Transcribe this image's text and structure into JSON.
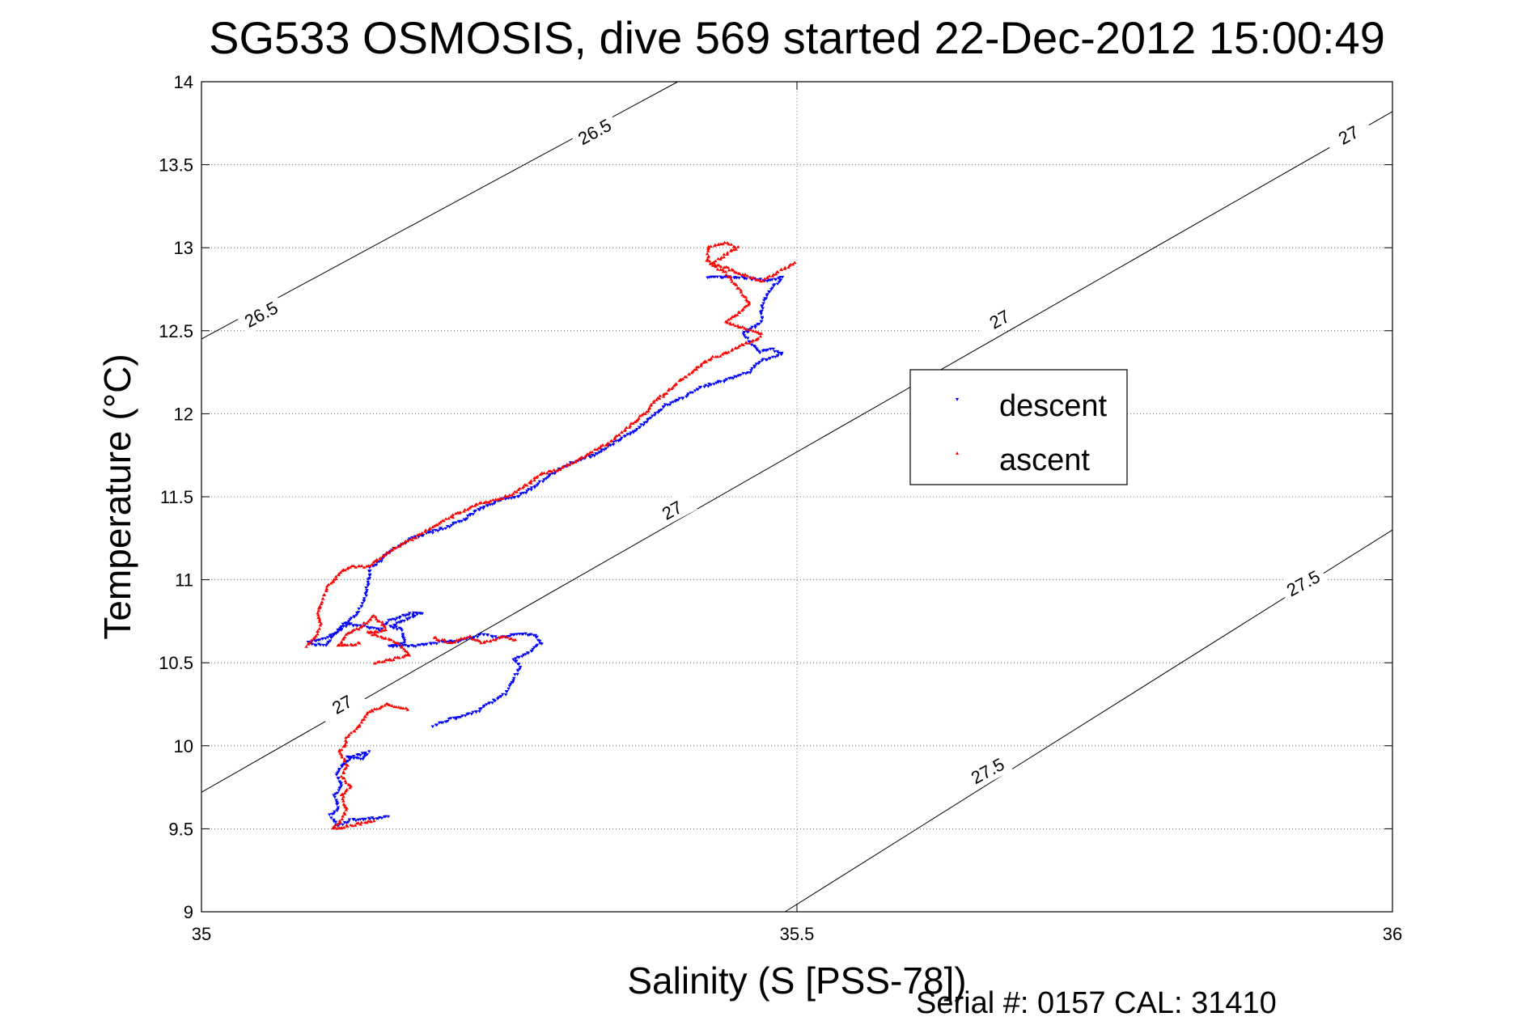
{
  "figure": {
    "footer": "Serial #: 0157  CAL: 31410"
  },
  "chart_data": {
    "type": "scatter",
    "title": "SG533 OSMOSIS, dive 569 started 22-Dec-2012 15:00:49",
    "xlabel": "Salinity (S [PSS-78])",
    "ylabel": "Temperature (°C)",
    "xlim": [
      35,
      36
    ],
    "ylim": [
      9,
      14
    ],
    "xticks": [
      "35",
      "35.5",
      "36"
    ],
    "yticks": [
      "9",
      "9.5",
      "10",
      "10.5",
      "11",
      "11.5",
      "12",
      "12.5",
      "13",
      "13.5",
      "14"
    ],
    "grid": true,
    "legend_position": "center-right",
    "density_contours": [
      {
        "level": "26.5",
        "x": [
          35.0,
          35.4
        ],
        "y": [
          12.45,
          14.0
        ]
      },
      {
        "level": "27",
        "x": [
          35.0,
          36.0
        ],
        "y": [
          9.72,
          13.82
        ]
      },
      {
        "level": "27",
        "x": [
          35.49,
          36.0
        ],
        "y": [
          9.0,
          11.3
        ]
      }
    ],
    "contour_labels": [
      {
        "text": "26.5",
        "x": 35.33,
        "y": 13.7
      },
      {
        "text": "26.5",
        "x": 35.05,
        "y": 12.6
      },
      {
        "text": "27",
        "x": 35.963,
        "y": 13.68
      },
      {
        "text": "27",
        "x": 35.67,
        "y": 12.57
      },
      {
        "text": "27",
        "x": 35.395,
        "y": 11.42
      },
      {
        "text": "27",
        "x": 35.118,
        "y": 10.25
      },
      {
        "text": "27.5",
        "x": 35.925,
        "y": 10.98
      },
      {
        "text": "27.5",
        "x": 35.66,
        "y": 9.85
      }
    ],
    "series": [
      {
        "name": "descent",
        "color": "#0000ff",
        "marker": "triangle-down",
        "anchors": [
          [
            35.157,
            9.57
          ],
          [
            35.125,
            9.55
          ],
          [
            35.115,
            9.52
          ],
          [
            35.108,
            9.58
          ],
          [
            35.115,
            9.62
          ],
          [
            35.112,
            9.7
          ],
          [
            35.118,
            9.76
          ],
          [
            35.113,
            9.82
          ],
          [
            35.118,
            9.88
          ],
          [
            35.125,
            9.93
          ],
          [
            35.14,
            9.96
          ],
          [
            35.135,
            9.92
          ],
          [
            35.12,
            9.94
          ],
          [
            35.195,
            10.12
          ],
          [
            35.21,
            10.16
          ],
          [
            35.23,
            10.2
          ],
          [
            35.245,
            10.27
          ],
          [
            35.255,
            10.31
          ],
          [
            35.262,
            10.4
          ],
          [
            35.268,
            10.48
          ],
          [
            35.262,
            10.52
          ],
          [
            35.275,
            10.56
          ],
          [
            35.285,
            10.62
          ],
          [
            35.28,
            10.67
          ],
          [
            35.265,
            10.67
          ],
          [
            35.248,
            10.65
          ],
          [
            35.236,
            10.67
          ],
          [
            35.215,
            10.63
          ],
          [
            35.195,
            10.62
          ],
          [
            35.18,
            10.6
          ],
          [
            35.158,
            10.6
          ],
          [
            35.17,
            10.62
          ],
          [
            35.168,
            10.7
          ],
          [
            35.158,
            10.72
          ],
          [
            35.172,
            10.76
          ],
          [
            35.185,
            10.8
          ],
          [
            35.172,
            10.79
          ],
          [
            35.158,
            10.75
          ],
          [
            35.15,
            10.7
          ],
          [
            35.135,
            10.72
          ],
          [
            35.12,
            10.74
          ],
          [
            35.104,
            10.6
          ],
          [
            35.09,
            10.62
          ],
          [
            35.112,
            10.67
          ],
          [
            35.122,
            10.73
          ],
          [
            35.132,
            10.81
          ],
          [
            35.138,
            10.9
          ],
          [
            35.14,
            11.0
          ],
          [
            35.142,
            11.07
          ],
          [
            35.148,
            11.1
          ],
          [
            35.155,
            11.15
          ],
          [
            35.165,
            11.2
          ],
          [
            35.18,
            11.26
          ],
          [
            35.2,
            11.3
          ],
          [
            35.22,
            11.36
          ],
          [
            35.232,
            11.42
          ],
          [
            35.25,
            11.48
          ],
          [
            35.265,
            11.5
          ],
          [
            35.278,
            11.55
          ],
          [
            35.29,
            11.62
          ],
          [
            35.31,
            11.7
          ],
          [
            35.33,
            11.75
          ],
          [
            35.345,
            11.82
          ],
          [
            35.355,
            11.86
          ],
          [
            35.365,
            11.9
          ],
          [
            35.375,
            11.96
          ],
          [
            35.385,
            12.02
          ],
          [
            35.39,
            12.05
          ],
          [
            35.405,
            12.1
          ],
          [
            35.42,
            12.16
          ],
          [
            35.44,
            12.2
          ],
          [
            35.46,
            12.25
          ],
          [
            35.47,
            12.32
          ],
          [
            35.488,
            12.36
          ],
          [
            35.478,
            12.39
          ],
          [
            35.468,
            12.37
          ],
          [
            35.462,
            12.42
          ],
          [
            35.455,
            12.48
          ],
          [
            35.47,
            12.55
          ],
          [
            35.47,
            12.62
          ],
          [
            35.472,
            12.68
          ],
          [
            35.478,
            12.75
          ],
          [
            35.488,
            12.82
          ],
          [
            35.475,
            12.8
          ],
          [
            35.455,
            12.82
          ],
          [
            35.425,
            12.82
          ]
        ]
      },
      {
        "name": "ascent",
        "color": "#ff0000",
        "marker": "triangle-up",
        "anchors": [
          [
            35.145,
            9.55
          ],
          [
            35.125,
            9.52
          ],
          [
            35.11,
            9.5
          ],
          [
            35.118,
            9.56
          ],
          [
            35.122,
            9.62
          ],
          [
            35.118,
            9.7
          ],
          [
            35.125,
            9.75
          ],
          [
            35.118,
            9.82
          ],
          [
            35.122,
            9.88
          ],
          [
            35.12,
            9.92
          ],
          [
            35.115,
            9.96
          ],
          [
            35.12,
            10.0
          ],
          [
            35.122,
            10.05
          ],
          [
            35.13,
            10.1
          ],
          [
            35.14,
            10.2
          ],
          [
            35.155,
            10.25
          ],
          [
            35.175,
            10.22
          ],
          [
            35.145,
            10.5
          ],
          [
            35.16,
            10.52
          ],
          [
            35.175,
            10.55
          ],
          [
            35.165,
            10.62
          ],
          [
            35.15,
            10.66
          ],
          [
            35.14,
            10.68
          ],
          [
            35.155,
            10.7
          ],
          [
            35.15,
            10.75
          ],
          [
            35.145,
            10.78
          ],
          [
            35.13,
            10.7
          ],
          [
            35.12,
            10.66
          ],
          [
            35.115,
            10.6
          ],
          [
            35.135,
            10.62
          ],
          [
            35.195,
            10.65
          ],
          [
            35.21,
            10.62
          ],
          [
            35.225,
            10.66
          ],
          [
            35.235,
            10.62
          ],
          [
            35.245,
            10.64
          ],
          [
            35.255,
            10.66
          ],
          [
            35.265,
            10.63
          ],
          [
            35.088,
            10.6
          ],
          [
            35.095,
            10.65
          ],
          [
            35.1,
            10.72
          ],
          [
            35.098,
            10.8
          ],
          [
            35.102,
            10.88
          ],
          [
            35.105,
            10.95
          ],
          [
            35.112,
            11.0
          ],
          [
            35.115,
            11.04
          ],
          [
            35.125,
            11.08
          ],
          [
            35.14,
            11.08
          ],
          [
            35.148,
            11.12
          ],
          [
            35.16,
            11.18
          ],
          [
            35.175,
            11.24
          ],
          [
            35.195,
            11.32
          ],
          [
            35.215,
            11.4
          ],
          [
            35.232,
            11.46
          ],
          [
            35.248,
            11.48
          ],
          [
            35.262,
            11.52
          ],
          [
            35.275,
            11.58
          ],
          [
            35.285,
            11.64
          ],
          [
            35.3,
            11.66
          ],
          [
            35.315,
            11.72
          ],
          [
            35.33,
            11.78
          ],
          [
            35.345,
            11.84
          ],
          [
            35.355,
            11.9
          ],
          [
            35.365,
            11.96
          ],
          [
            35.375,
            12.02
          ],
          [
            35.38,
            12.08
          ],
          [
            35.39,
            12.12
          ],
          [
            35.398,
            12.18
          ],
          [
            35.41,
            12.24
          ],
          [
            35.42,
            12.3
          ],
          [
            35.43,
            12.34
          ],
          [
            35.445,
            12.38
          ],
          [
            35.455,
            12.42
          ],
          [
            35.465,
            12.44
          ],
          [
            35.47,
            12.48
          ],
          [
            35.455,
            12.52
          ],
          [
            35.44,
            12.55
          ],
          [
            35.45,
            12.6
          ],
          [
            35.46,
            12.66
          ],
          [
            35.455,
            12.72
          ],
          [
            35.448,
            12.78
          ],
          [
            35.44,
            12.85
          ],
          [
            35.428,
            12.9
          ],
          [
            35.438,
            12.95
          ],
          [
            35.45,
            13.0
          ],
          [
            35.44,
            13.03
          ],
          [
            35.425,
            13.0
          ],
          [
            35.425,
            12.92
          ],
          [
            35.44,
            12.88
          ],
          [
            35.47,
            12.8
          ],
          [
            35.498,
            12.91
          ]
        ]
      }
    ]
  }
}
